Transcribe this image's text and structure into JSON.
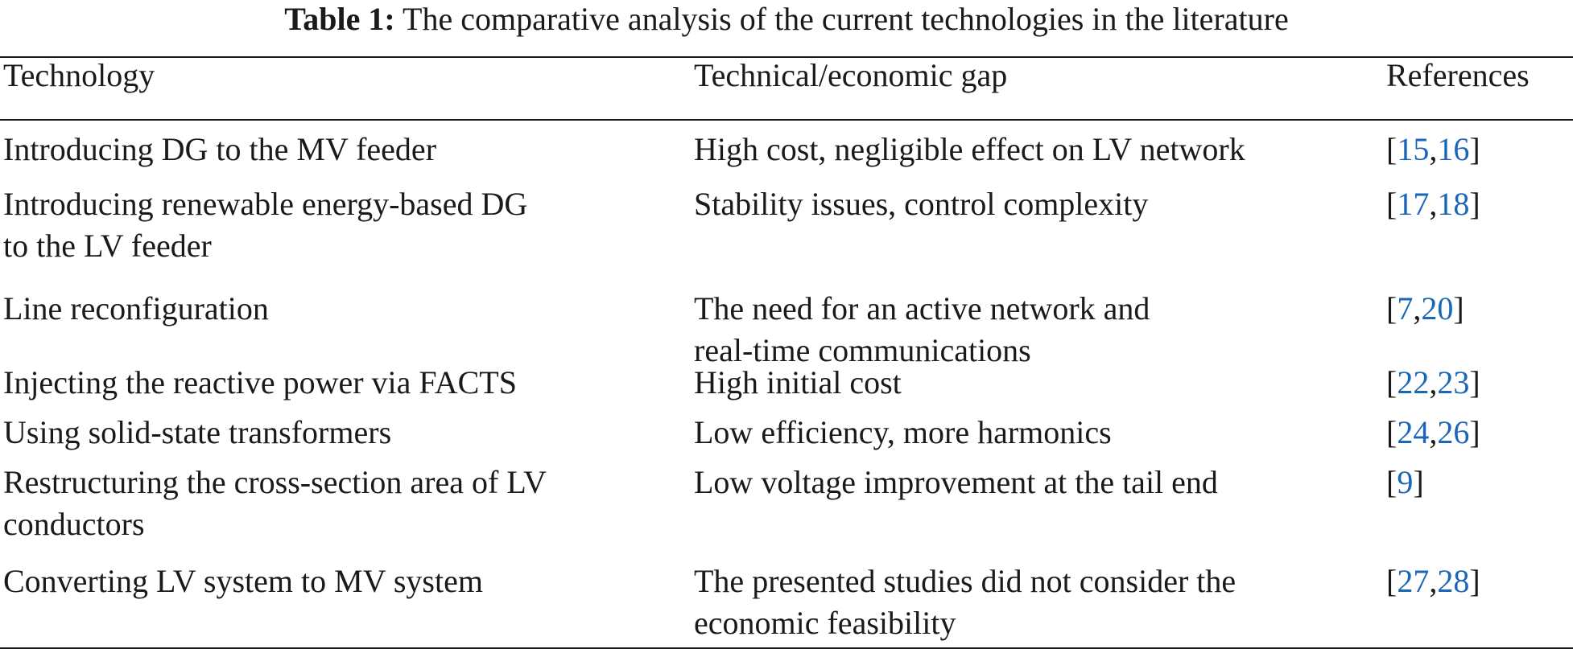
{
  "caption": {
    "label": "Table 1:",
    "text": "The comparative analysis of the current technologies in the literature"
  },
  "table": {
    "headers": {
      "technology": "Technology",
      "gap": "Technical/economic gap",
      "references": "References"
    },
    "rows": [
      {
        "technology": [
          "Introducing DG to the MV feeder"
        ],
        "gap": [
          "High cost, negligible effect on LV network"
        ],
        "refs": [
          "15",
          "16"
        ]
      },
      {
        "technology": [
          "Introducing renewable energy-based DG",
          "to the LV feeder"
        ],
        "gap": [
          "Stability issues, control complexity"
        ],
        "refs": [
          "17",
          "18"
        ]
      },
      {
        "technology": [
          "Line reconfiguration"
        ],
        "gap": [
          "The need for an active network and",
          "real-time communications"
        ],
        "refs": [
          "7",
          "20"
        ]
      },
      {
        "technology": [
          "Injecting the reactive power via FACTS"
        ],
        "gap": [
          "High initial cost"
        ],
        "refs": [
          "22",
          "23"
        ]
      },
      {
        "technology": [
          "Using solid-state transformers"
        ],
        "gap": [
          "Low efficiency, more harmonics"
        ],
        "refs": [
          "24",
          "26"
        ]
      },
      {
        "technology": [
          "Restructuring the cross-section area of LV",
          "conductors"
        ],
        "gap": [
          "Low voltage improvement at the tail end"
        ],
        "refs": [
          "9"
        ]
      },
      {
        "technology": [
          "Converting LV system to MV system"
        ],
        "gap": [
          "The presented studies did not consider the",
          "economic feasibility"
        ],
        "refs": [
          "27",
          "28"
        ]
      }
    ]
  },
  "colors": {
    "text": "#1a1a1a",
    "reference_link": "#1a66b8"
  }
}
